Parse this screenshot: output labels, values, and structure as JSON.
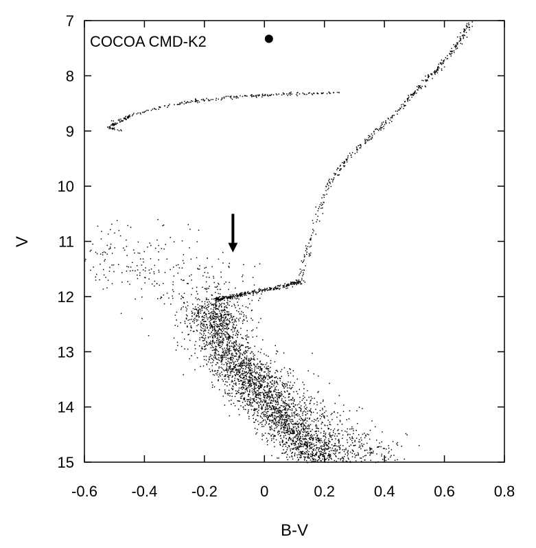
{
  "chart_data": {
    "type": "scatter",
    "title": "",
    "xlabel": "B-V",
    "ylabel": "V",
    "xlim": [
      -0.6,
      0.8
    ],
    "ylim": [
      15,
      7
    ],
    "y_axis_inverted": true,
    "grid": false,
    "x_ticks": [
      "-0.6",
      "-0.4",
      "-0.2",
      "0",
      "0.2",
      "0.4",
      "0.6",
      "0.8"
    ],
    "y_ticks": [
      "7",
      "8",
      "9",
      "10",
      "11",
      "12",
      "13",
      "14",
      "15"
    ],
    "annotations": {
      "label": "COCOA CMD-K2",
      "marker_point": {
        "x": 0.015,
        "y": 7.33
      },
      "arrow": {
        "x": -0.105,
        "y_from": 10.5,
        "y_to": 11.2
      }
    },
    "point_color": "#000000",
    "series": [
      {
        "sequences": [
          {
            "part": "main-sequence-ridge",
            "x": [
              0.2,
              0.16,
              0.12,
              0.08,
              0.04,
              0.0,
              -0.04,
              -0.08,
              -0.11,
              -0.14,
              -0.16,
              -0.17,
              -0.17
            ],
            "y": [
              15.0,
              14.8,
              14.6,
              14.35,
              14.1,
              13.85,
              13.6,
              13.35,
              13.1,
              12.85,
              12.6,
              12.35,
              12.15
            ],
            "count": 2600,
            "spread": 0.05
          },
          {
            "part": "main-sequence-red-broadening",
            "x": [
              0.38,
              0.3,
              0.22,
              0.14,
              0.06,
              0.0,
              -0.06
            ],
            "y": [
              15.0,
              14.75,
              14.5,
              14.2,
              13.8,
              13.5,
              13.1
            ],
            "count": 700,
            "spread": 0.07
          },
          {
            "part": "turnoff-kink",
            "x": [
              -0.16,
              -0.12,
              -0.05,
              0.05,
              0.12
            ],
            "y": [
              12.05,
              12.0,
              11.92,
              11.82,
              11.72
            ],
            "count": 300,
            "spread": 0.008
          },
          {
            "part": "subgiant-giant-branch",
            "x": [
              0.12,
              0.14,
              0.17,
              0.21,
              0.26,
              0.31,
              0.37,
              0.43,
              0.48,
              0.53,
              0.57,
              0.6,
              0.64,
              0.66,
              0.69
            ],
            "y": [
              11.72,
              11.2,
              10.6,
              10.0,
              9.6,
              9.3,
              9.0,
              8.7,
              8.4,
              8.1,
              7.9,
              7.7,
              7.45,
              7.25,
              7.0
            ],
            "count": 400,
            "spread": 0.006
          },
          {
            "part": "horizontal-loop",
            "x": [
              -0.49,
              -0.52,
              -0.5,
              -0.45,
              -0.35,
              -0.25,
              -0.15,
              -0.05,
              0.05,
              0.15,
              0.25
            ],
            "y": [
              8.98,
              8.93,
              8.85,
              8.72,
              8.56,
              8.46,
              8.4,
              8.36,
              8.33,
              8.31,
              8.3
            ],
            "count": 260,
            "spread": 0.006
          },
          {
            "part": "blue-field-scatter",
            "x": [
              -0.58,
              -0.45,
              -0.3,
              -0.2,
              -0.15
            ],
            "y": [
              10.8,
              11.3,
              11.6,
              11.85,
              12.3
            ],
            "count": 320,
            "spread": 0.11
          }
        ]
      }
    ]
  }
}
